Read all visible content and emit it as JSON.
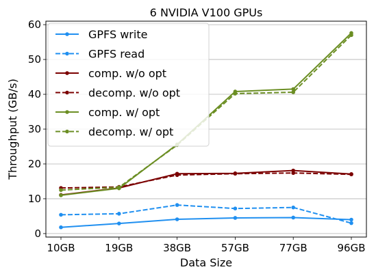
{
  "chart_data": {
    "type": "line",
    "title": "6 NVIDIA V100 GPUs",
    "xlabel": "Data Size",
    "ylabel": "Throughput (GB/s)",
    "categories": [
      "10GB",
      "19GB",
      "38GB",
      "57GB",
      "77GB",
      "96GB"
    ],
    "ylim": [
      -1,
      61
    ],
    "yticks": [
      0,
      10,
      20,
      30,
      40,
      50,
      60
    ],
    "grid": "horizontal",
    "legend_position": "top-left",
    "series": [
      {
        "name": "GPFS write",
        "color": "#1f8ff0",
        "dash": "solid",
        "values": [
          1.8,
          2.9,
          4.1,
          4.5,
          4.6,
          4.0
        ]
      },
      {
        "name": "GPFS read",
        "color": "#1f8ff0",
        "dash": "dashed",
        "values": [
          5.4,
          5.7,
          8.2,
          7.2,
          7.5,
          3.0
        ]
      },
      {
        "name": "comp. w/o opt",
        "color": "#7b0000",
        "dash": "solid",
        "values": [
          11.1,
          13.1,
          17.2,
          17.3,
          18.1,
          17.1
        ]
      },
      {
        "name": "decomp. w/o opt",
        "color": "#7b0000",
        "dash": "dashed",
        "values": [
          13.1,
          13.4,
          16.8,
          17.2,
          17.4,
          17.0
        ]
      },
      {
        "name": "comp. w/ opt",
        "color": "#6b8e23",
        "dash": "solid",
        "values": [
          11.0,
          13.0,
          25.6,
          40.8,
          41.5,
          57.6
        ]
      },
      {
        "name": "decomp. w/ opt",
        "color": "#6b8e23",
        "dash": "dashed",
        "values": [
          12.5,
          13.3,
          25.4,
          40.2,
          40.6,
          57.0
        ]
      }
    ]
  }
}
